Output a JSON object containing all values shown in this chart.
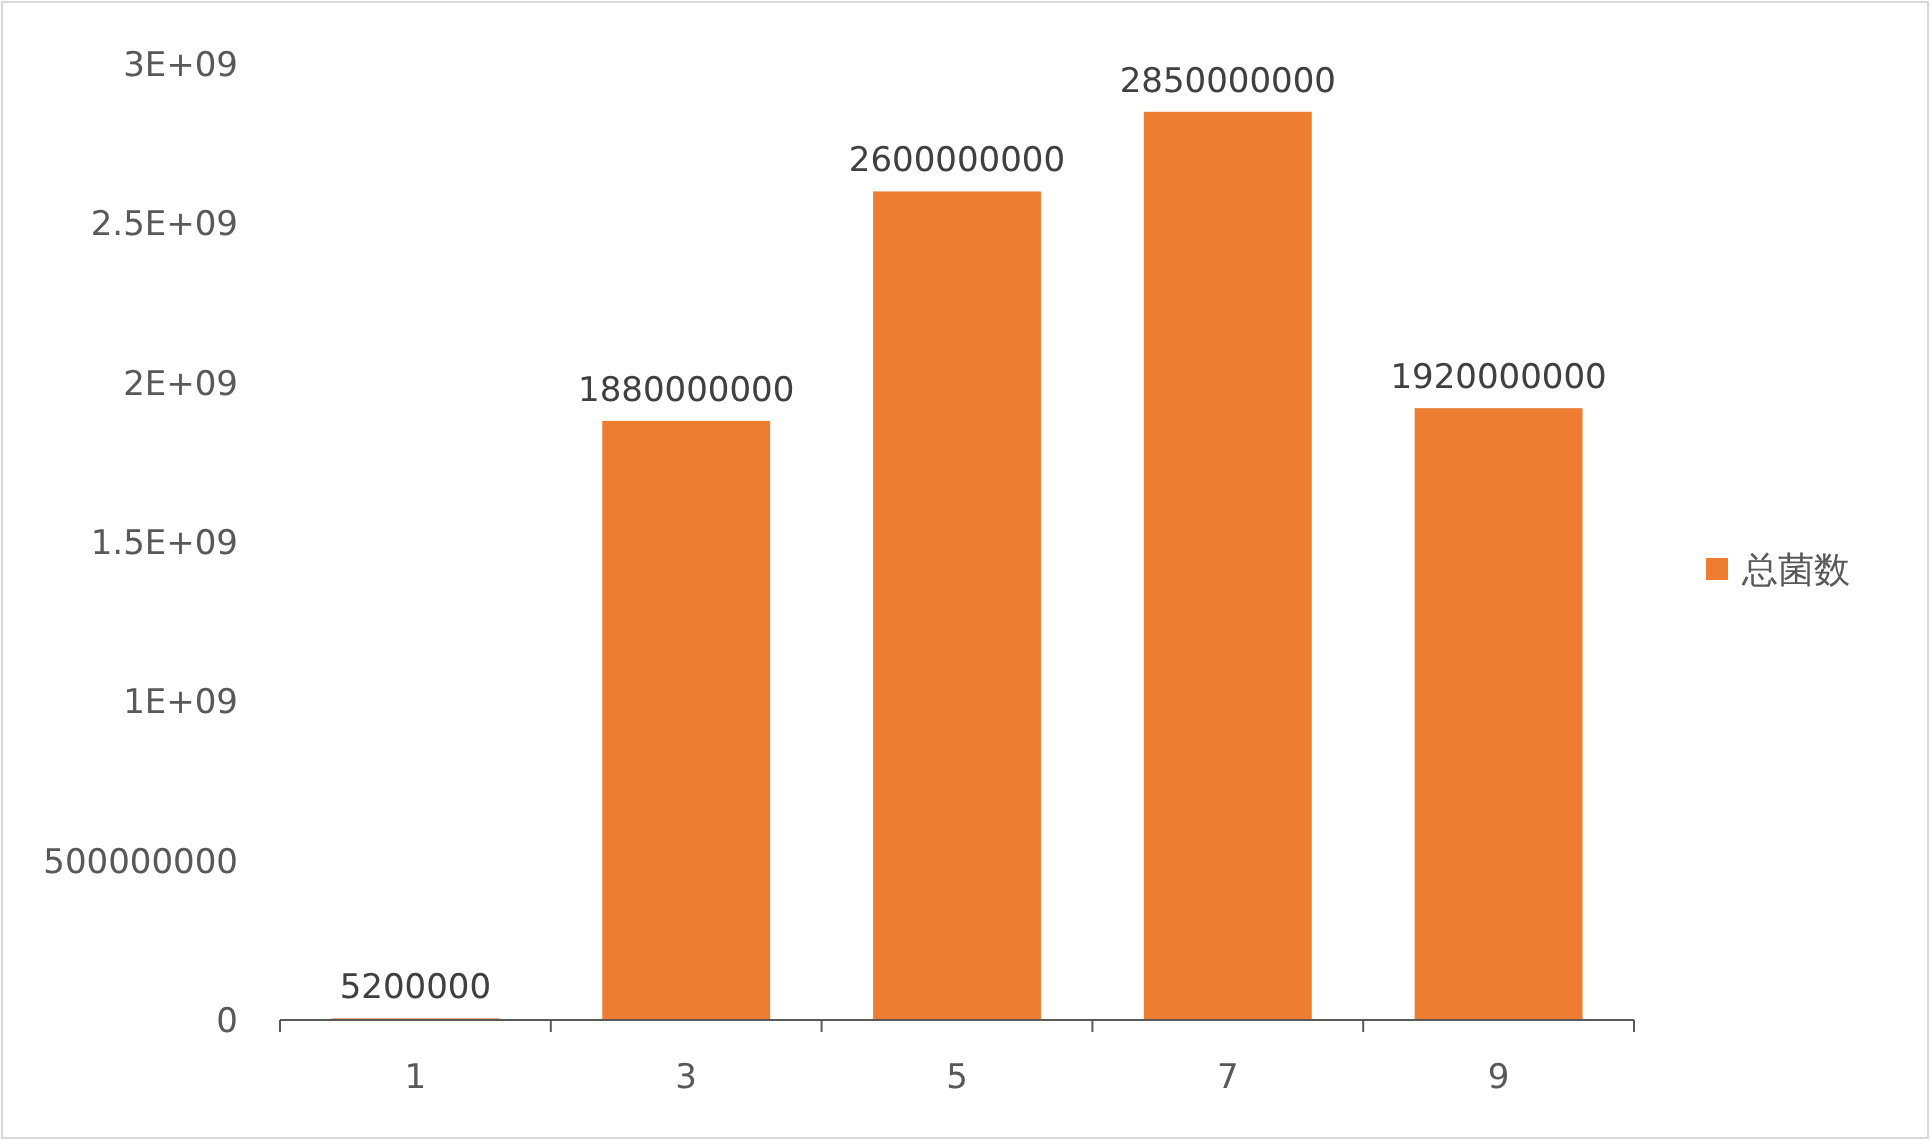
{
  "chart_data": {
    "type": "bar",
    "categories": [
      "1",
      "3",
      "5",
      "7",
      "9"
    ],
    "series": [
      {
        "name": "总菌数",
        "color": "#ed7d31",
        "values": [
          5200000,
          1880000000,
          2600000000,
          2850000000,
          1920000000
        ]
      }
    ],
    "ylim": [
      0,
      3000000000
    ],
    "yticks": [
      0,
      500000000,
      {
        "value": 1000000000,
        "label": "1E+09"
      },
      {
        "value": 1500000000,
        "label": "1.5E+09"
      },
      {
        "value": 2000000000,
        "label": "2E+09"
      },
      {
        "value": 2500000000,
        "label": "2.5E+09"
      },
      {
        "value": 3000000000,
        "label": "3E+09"
      }
    ],
    "data_labels": true,
    "grid": false,
    "legend": "right"
  }
}
